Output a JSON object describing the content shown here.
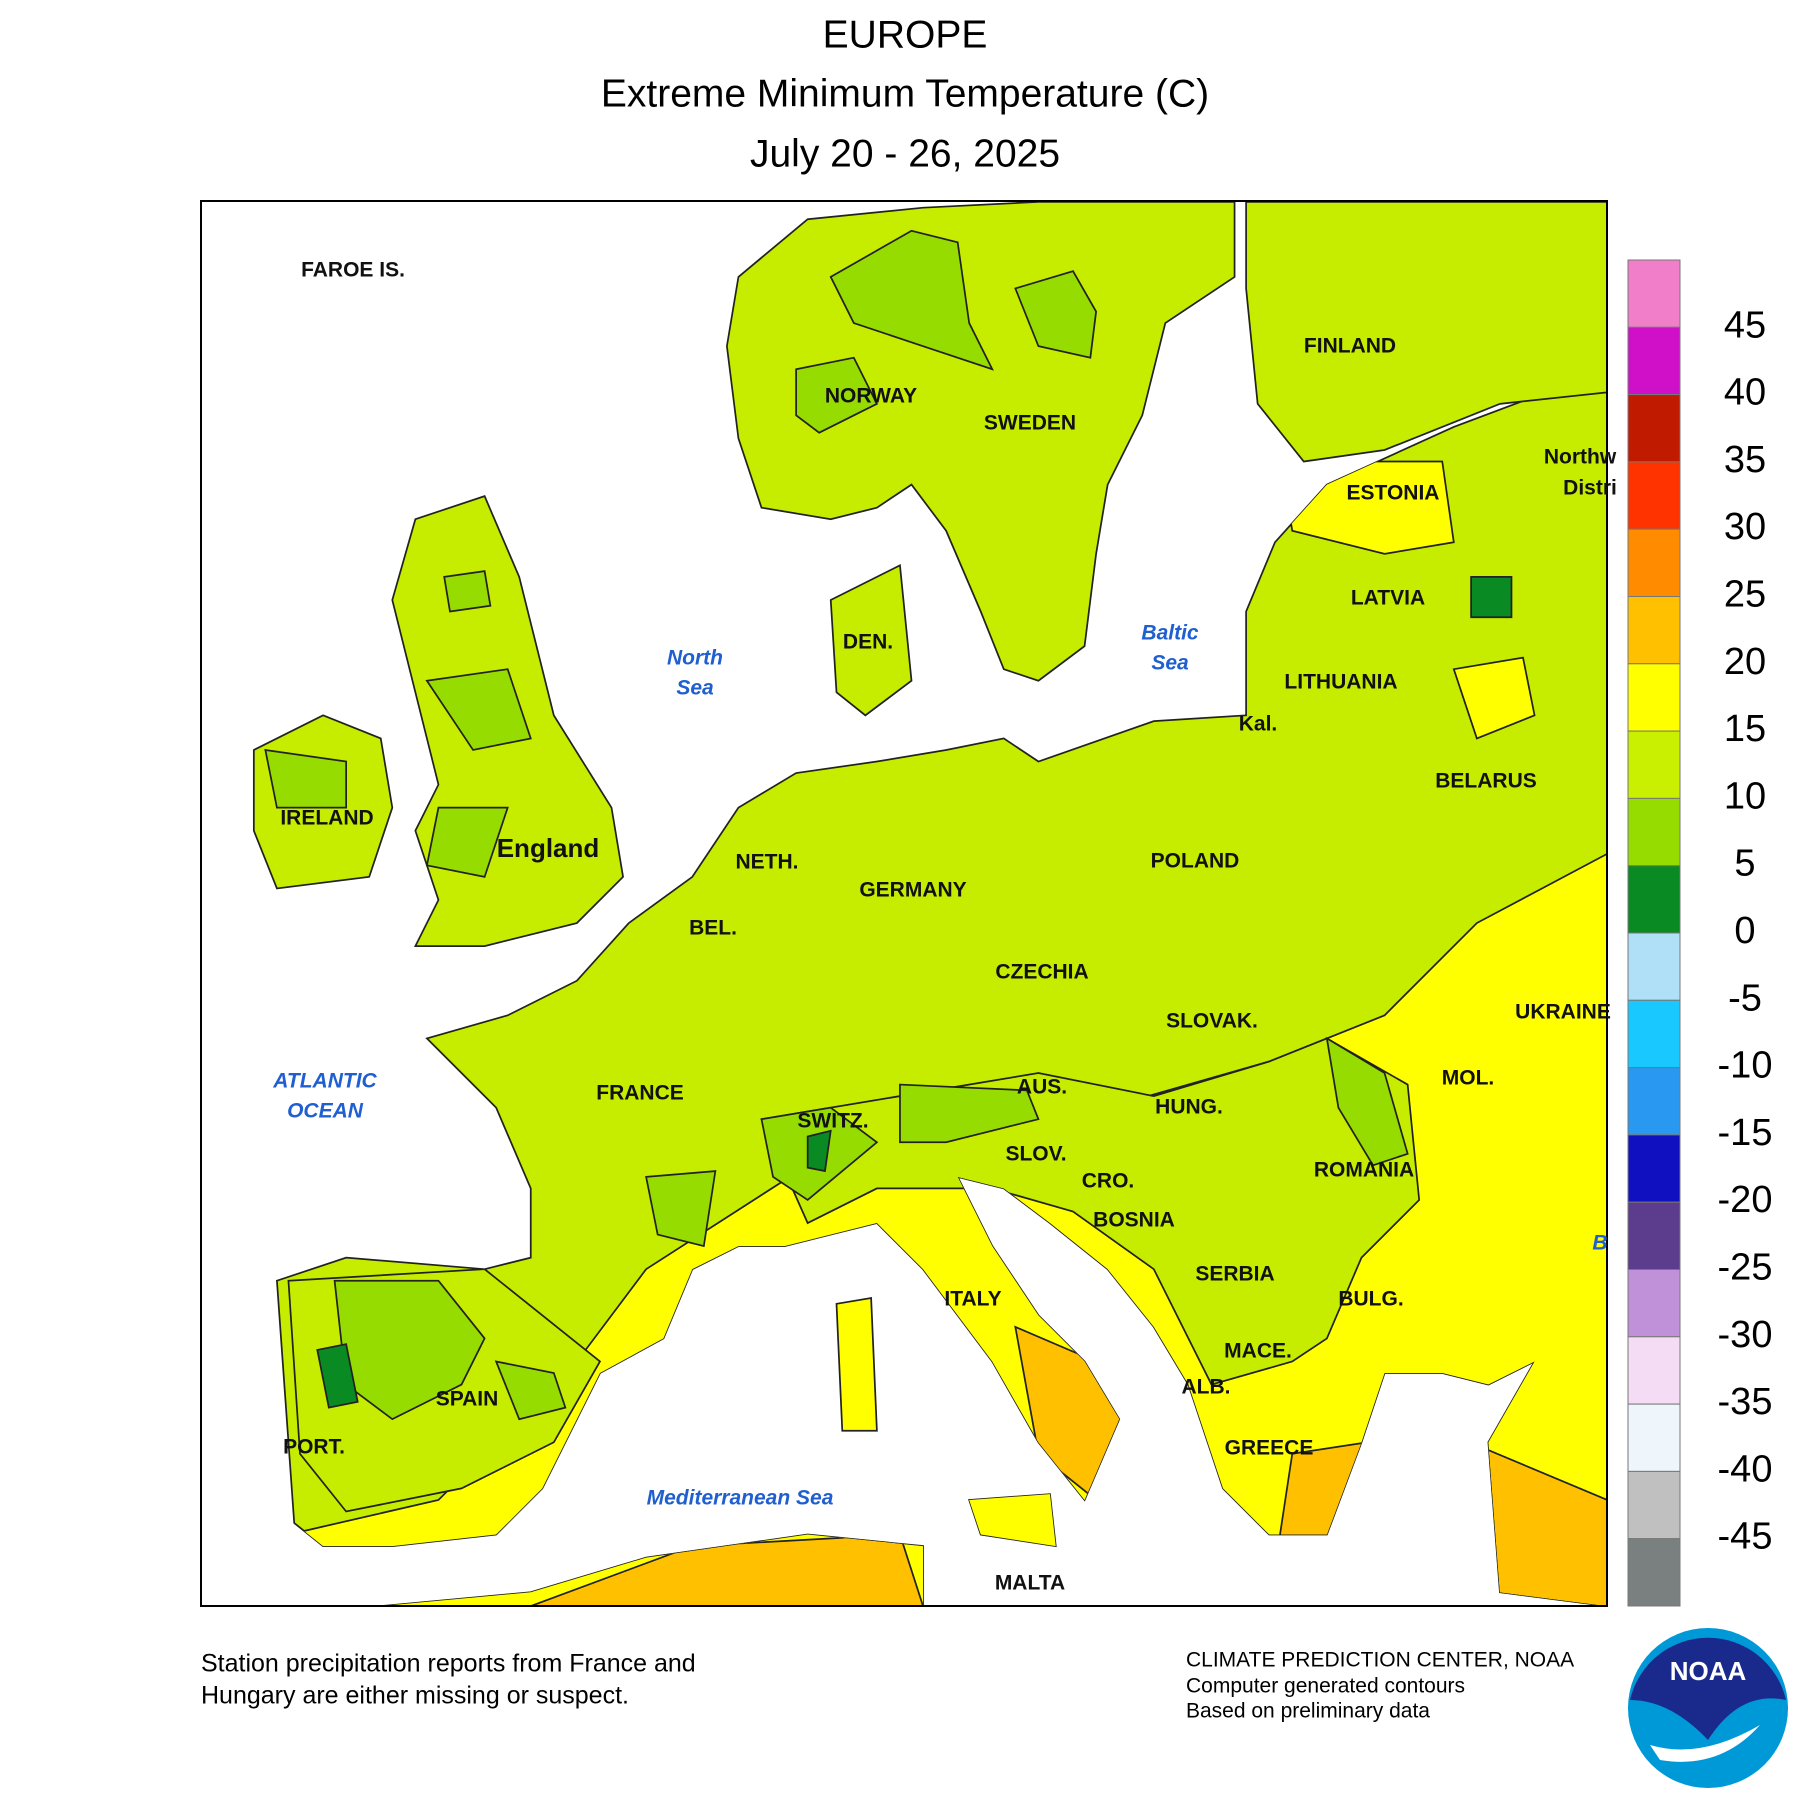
{
  "header": {
    "title": "EUROPE",
    "subtitle": "Extreme Minimum Temperature (C)",
    "period": "July 20 - 26, 2025"
  },
  "map_labels": [
    "FAROE IS.",
    "NORWAY",
    "SWEDEN",
    "FINLAND",
    "ESTONIA",
    "LATVIA",
    "LITHUANIA",
    "Kal.",
    "BELARUS",
    "POLAND",
    "GERMANY",
    "NETH.",
    "BEL.",
    "CZECHIA",
    "SLOVAK.",
    "UKRAINE",
    "MOL.",
    "HUNG.",
    "AUS.",
    "SWITZ.",
    "SLOV.",
    "CRO.",
    "BOSNIA",
    "ROMANIA",
    "SERBIA",
    "BULG.",
    "ITALY",
    "MACE.",
    "ALB.",
    "GREECE",
    "MALTA",
    "FRANCE",
    "SPAIN",
    "PORT.",
    "IRELAND",
    "DEN.",
    "Northw",
    "Distri"
  ],
  "england_label": "England",
  "water_labels": [
    [
      "North",
      "Sea"
    ],
    [
      "Baltic",
      "Sea"
    ],
    [
      "ATLANTIC",
      "OCEAN"
    ],
    [
      "Mediterranean Sea"
    ],
    [
      "B"
    ]
  ],
  "legend": {
    "colors": [
      "#f07ec8",
      "#d010c8",
      "#c01a00",
      "#ff3300",
      "#ff8c00",
      "#ffc000",
      "#ffff00",
      "#c8f000",
      "#96dc00",
      "#0a8a22",
      "#b0e0f8",
      "#18c8ff",
      "#2898f0",
      "#1010c0",
      "#5c3c8c",
      "#c090d8",
      "#f4dcf4",
      "#eef6fc",
      "#c0c0c0",
      "#7a8080"
    ],
    "ticks": [
      45,
      40,
      35,
      30,
      25,
      20,
      15,
      10,
      5,
      0,
      -5,
      -10,
      -15,
      -20,
      -25,
      -30,
      -35,
      -40,
      -45
    ]
  },
  "footer": {
    "note": [
      "Station precipitation reports from France and",
      "Hungary are either missing or suspect."
    ],
    "credits": [
      "CLIMATE PREDICTION CENTER, NOAA",
      "Computer generated contours",
      "Based on preliminary data"
    ],
    "logo": "NOAA"
  }
}
